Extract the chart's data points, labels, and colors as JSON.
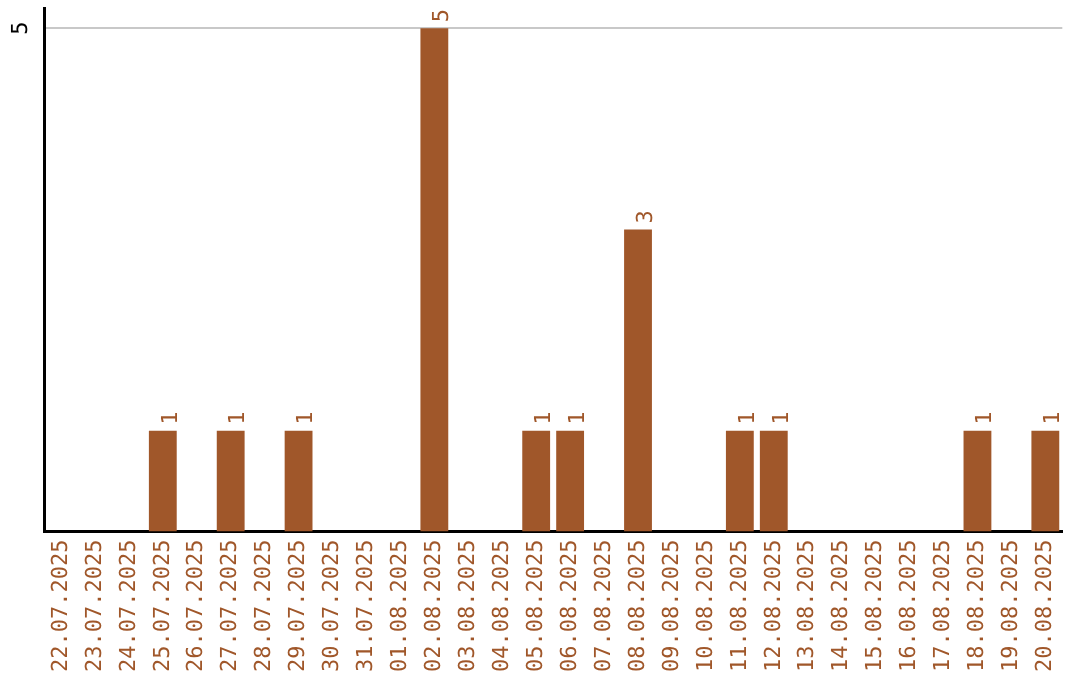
{
  "chart_data": {
    "type": "bar",
    "categories": [
      "22.07.2025",
      "23.07.2025",
      "24.07.2025",
      "25.07.2025",
      "26.07.2025",
      "27.07.2025",
      "28.07.2025",
      "29.07.2025",
      "30.07.2025",
      "31.07.2025",
      "01.08.2025",
      "02.08.2025",
      "03.08.2025",
      "04.08.2025",
      "05.08.2025",
      "06.08.2025",
      "07.08.2025",
      "08.08.2025",
      "09.08.2025",
      "10.08.2025",
      "11.08.2025",
      "12.08.2025",
      "13.08.2025",
      "14.08.2025",
      "15.08.2025",
      "16.08.2025",
      "17.08.2025",
      "18.08.2025",
      "19.08.2025",
      "20.08.2025"
    ],
    "values": [
      0,
      0,
      0,
      1,
      0,
      1,
      0,
      1,
      0,
      0,
      0,
      5,
      0,
      0,
      1,
      1,
      0,
      3,
      0,
      0,
      1,
      1,
      0,
      0,
      0,
      0,
      0,
      1,
      0,
      1
    ],
    "value_labels": [
      null,
      null,
      null,
      "1",
      null,
      "1",
      null,
      "1",
      null,
      null,
      null,
      "5",
      null,
      null,
      "1",
      "1",
      null,
      "3",
      null,
      null,
      "1",
      "1",
      null,
      null,
      null,
      null,
      null,
      "1",
      null,
      "1"
    ],
    "color": "#a0572a",
    "ylim": [
      0,
      5.2
    ],
    "yticks": [
      5
    ],
    "grid": "y",
    "legend": false
  }
}
